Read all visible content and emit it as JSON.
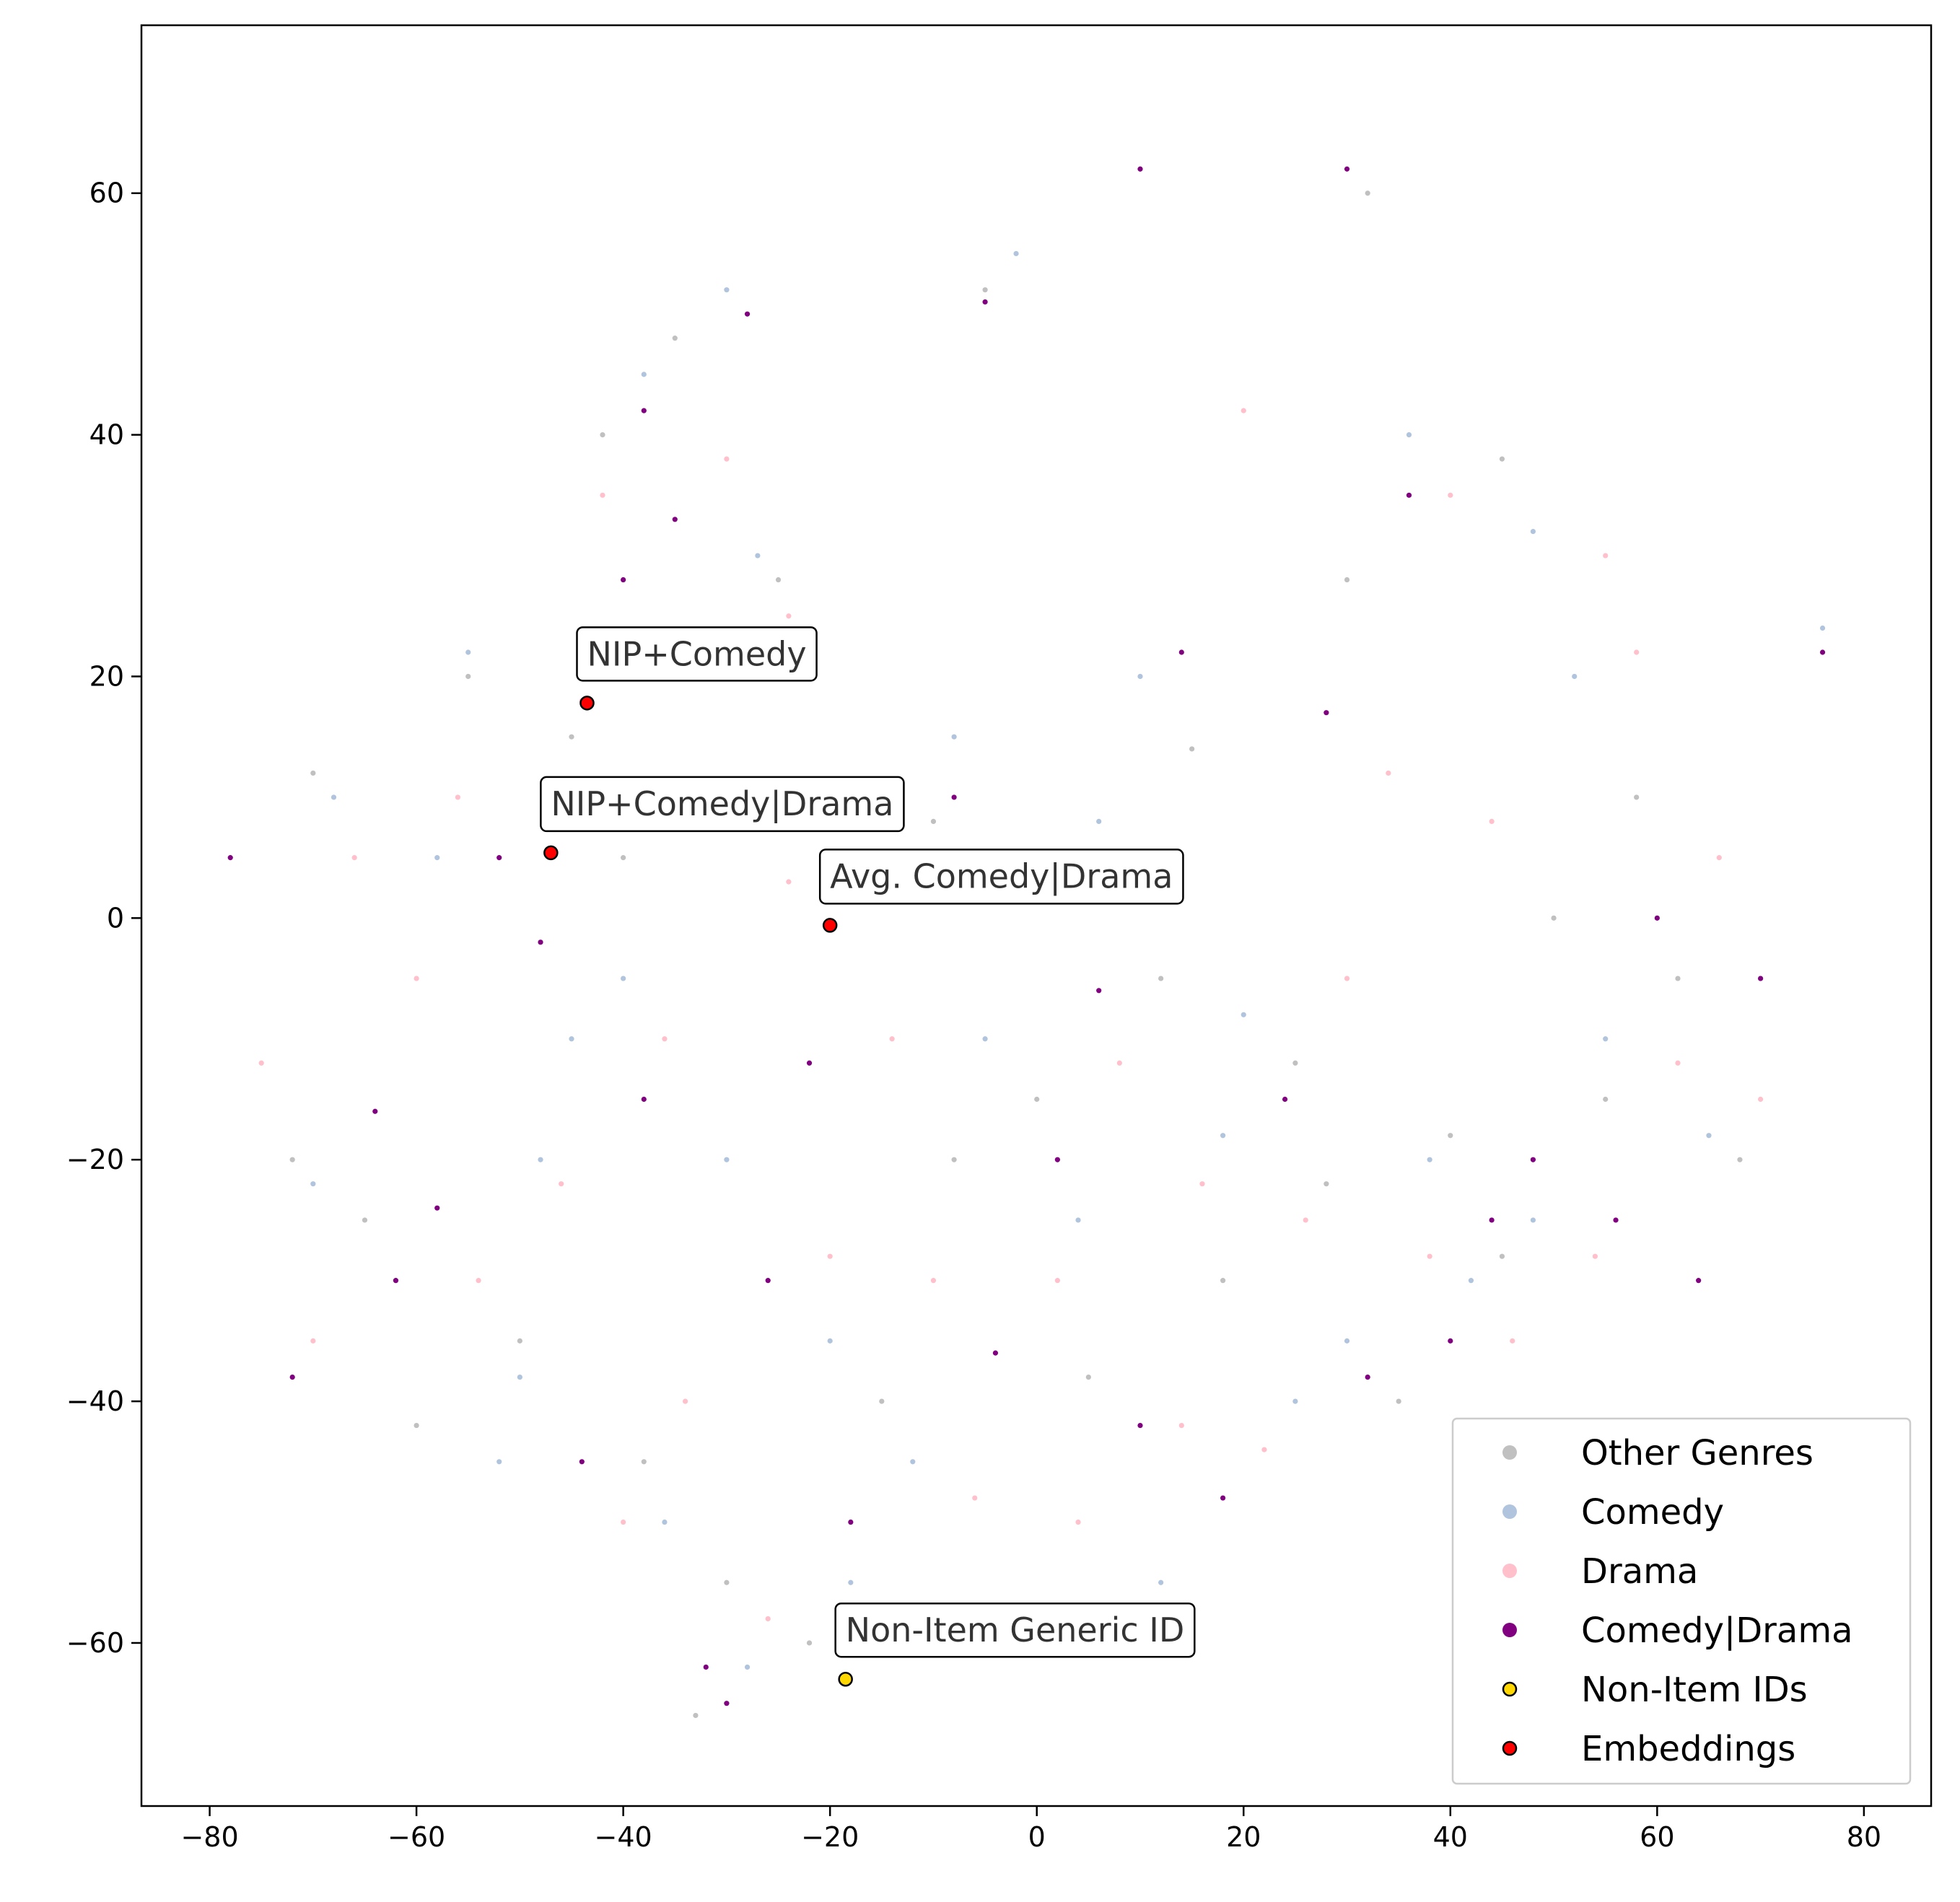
{
  "chart_data": {
    "type": "scatter",
    "xlim": [
      -86.6,
      86.5
    ],
    "ylim": [
      -73.5,
      73.9
    ],
    "xticks": [
      {
        "value": -80,
        "label": "−80"
      },
      {
        "value": -60,
        "label": "−60"
      },
      {
        "value": -40,
        "label": "−40"
      },
      {
        "value": -20,
        "label": "−20"
      },
      0,
      20,
      40,
      60,
      80
    ],
    "yticks": [
      {
        "value": -60,
        "label": "−60"
      },
      {
        "value": -40,
        "label": "−40"
      },
      {
        "value": -20,
        "label": "−20"
      },
      0,
      20,
      40,
      60
    ],
    "legend": "lower right",
    "series": [
      {
        "name": "Other Genres",
        "color": "#c0c0c0",
        "x": [
          -70,
          -72,
          -65,
          -55,
          -45,
          -38,
          -30,
          -22,
          -15,
          -8,
          0,
          5,
          12,
          18,
          25,
          35,
          45,
          55,
          62,
          68,
          -60,
          -50,
          -40,
          -28,
          -10,
          2,
          15,
          28,
          40,
          50,
          -35,
          -25,
          -42,
          30,
          45,
          10,
          32,
          -5,
          -33,
          58
        ],
        "values": [
          12,
          -20,
          -25,
          20,
          15,
          -45,
          -55,
          -60,
          -40,
          -20,
          -15,
          -38,
          -5,
          -30,
          -12,
          -40,
          -28,
          -15,
          -5,
          -20,
          -42,
          -35,
          5,
          10,
          8,
          3,
          14,
          -22,
          -18,
          0,
          48,
          28,
          40,
          28,
          38,
          62,
          60,
          52,
          -66,
          10
        ]
      },
      {
        "name": "Comedy",
        "color": "#b0c4de",
        "x": [
          -68,
          -70,
          -62,
          -55,
          -50,
          -45,
          -36,
          -28,
          -20,
          -12,
          -5,
          4,
          10,
          20,
          30,
          38,
          48,
          55,
          65,
          70,
          -58,
          -48,
          -30,
          -18,
          -8,
          6,
          18,
          25,
          42,
          52,
          -38,
          -27,
          -30,
          36,
          48,
          76,
          -2,
          -52,
          -40,
          12
        ],
        "values": [
          10,
          -22,
          -30,
          22,
          -38,
          -10,
          -50,
          -62,
          -35,
          -45,
          -10,
          -25,
          20,
          -8,
          -35,
          -20,
          -25,
          -10,
          -18,
          -5,
          5,
          -20,
          -20,
          -55,
          15,
          8,
          -18,
          -40,
          -30,
          20,
          45,
          30,
          52,
          40,
          32,
          24,
          55,
          -45,
          -5,
          -55
        ]
      },
      {
        "name": "Drama",
        "color": "#ffc0cb",
        "x": [
          -75,
          -70,
          -66,
          -60,
          -54,
          -46,
          -40,
          -34,
          -26,
          -20,
          -14,
          -6,
          2,
          8,
          16,
          22,
          30,
          38,
          46,
          54,
          62,
          70,
          -56,
          -44,
          -36,
          -24,
          -10,
          4,
          14,
          26,
          34,
          44,
          58,
          66,
          -42,
          -30,
          -24,
          20,
          40,
          55
        ],
        "values": [
          -12,
          -35,
          5,
          -5,
          -30,
          -22,
          -50,
          -40,
          -58,
          -28,
          -10,
          -48,
          -30,
          -12,
          -22,
          -44,
          -5,
          -28,
          -35,
          -28,
          -12,
          -15,
          10,
          18,
          -10,
          3,
          -30,
          -50,
          -42,
          -25,
          12,
          8,
          22,
          5,
          35,
          38,
          25,
          42,
          35,
          30
        ]
      },
      {
        "name": "Comedy|Drama",
        "color": "#800080",
        "x": [
          -78,
          -72,
          -64,
          -58,
          -52,
          -44,
          -38,
          -32,
          -26,
          -18,
          -12,
          -4,
          2,
          10,
          18,
          24,
          32,
          40,
          48,
          56,
          64,
          70,
          -62,
          -48,
          -40,
          -34,
          -22,
          -8,
          6,
          14,
          28,
          36,
          44,
          60,
          -35,
          -28,
          -38,
          -5,
          10,
          30,
          76,
          -30
        ],
        "values": [
          5,
          -38,
          -16,
          -24,
          5,
          -45,
          -15,
          -62,
          -30,
          -50,
          2,
          -36,
          -20,
          -42,
          -48,
          -15,
          -38,
          -35,
          -20,
          -25,
          -30,
          -5,
          -30,
          -2,
          28,
          20,
          -12,
          10,
          -6,
          22,
          17,
          35,
          -25,
          0,
          33,
          50,
          42,
          51,
          62,
          62,
          22,
          -65
        ]
      },
      {
        "name": "Non-Item IDs",
        "color": "#ffd700",
        "x": [
          -18.5
        ],
        "values": [
          -63
        ],
        "point_labels": [
          "Non-Item Generic ID"
        ]
      },
      {
        "name": "Embeddings",
        "color": "#ff0000",
        "x": [
          -43.5,
          -47,
          -20
        ],
        "values": [
          17.8,
          5.4,
          -0.6
        ],
        "point_labels": [
          "NIP+Comedy",
          "NIP+Comedy|Drama",
          "Avg. Comedy|Drama"
        ]
      }
    ]
  }
}
